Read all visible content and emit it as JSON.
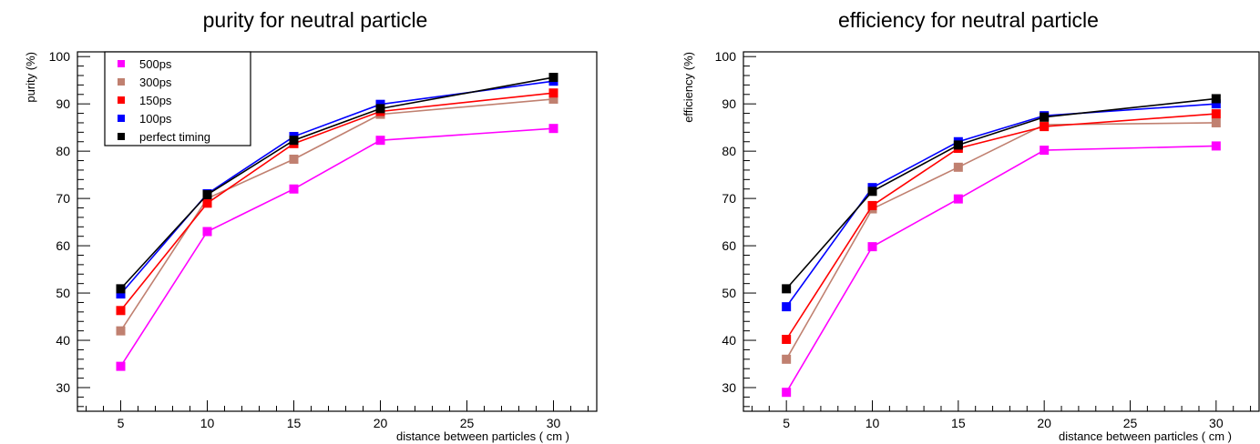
{
  "chart_data": [
    {
      "type": "line",
      "title": "purity for neutral particle",
      "xlabel": "distance between particles ( cm )",
      "ylabel": "purity (%)",
      "xlim": [
        2.5,
        32.5
      ],
      "ylim": [
        25,
        101
      ],
      "x_ticks": [
        5,
        10,
        15,
        20,
        25,
        30
      ],
      "y_ticks": [
        30,
        40,
        50,
        60,
        70,
        80,
        90,
        100
      ],
      "grid": false,
      "legend": "top-left",
      "x": [
        5,
        10,
        15,
        20,
        30
      ],
      "series": [
        {
          "name": "500ps",
          "color": "#ff00ff",
          "values": [
            34.5,
            63,
            72,
            82.3,
            84.8
          ]
        },
        {
          "name": "300ps",
          "color": "#c08070",
          "values": [
            42,
            70,
            78.3,
            87.8,
            91
          ]
        },
        {
          "name": "150ps",
          "color": "#ff0000",
          "values": [
            46.3,
            69,
            81.6,
            88.4,
            92.3
          ]
        },
        {
          "name": "100ps",
          "color": "#0000ff",
          "values": [
            49.8,
            71,
            83.1,
            89.9,
            94.8
          ]
        },
        {
          "name": "perfect timing",
          "color": "#000000",
          "values": [
            50.9,
            70.8,
            82.3,
            89,
            95.6
          ]
        }
      ]
    },
    {
      "type": "line",
      "title": "efficiency for neutral particle",
      "xlabel": "distance between particles ( cm )",
      "ylabel": "efficiency (%)",
      "xlim": [
        2.5,
        32.5
      ],
      "ylim": [
        25,
        101
      ],
      "x_ticks": [
        5,
        10,
        15,
        20,
        25,
        30
      ],
      "y_ticks": [
        30,
        40,
        50,
        60,
        70,
        80,
        90,
        100
      ],
      "grid": false,
      "legend": "none",
      "x": [
        5,
        10,
        15,
        20,
        30
      ],
      "series": [
        {
          "name": "500ps",
          "color": "#ff00ff",
          "values": [
            29,
            59.8,
            69.9,
            80.2,
            81.1
          ]
        },
        {
          "name": "300ps",
          "color": "#c08070",
          "values": [
            36,
            67.8,
            76.6,
            85.6,
            86
          ]
        },
        {
          "name": "150ps",
          "color": "#ff0000",
          "values": [
            40.2,
            68.5,
            80.6,
            85.2,
            87.9
          ]
        },
        {
          "name": "100ps",
          "color": "#0000ff",
          "values": [
            47.1,
            72.3,
            82,
            87.5,
            90
          ]
        },
        {
          "name": "perfect timing",
          "color": "#000000",
          "values": [
            50.9,
            71.5,
            81.3,
            87.2,
            91.1
          ]
        }
      ]
    }
  ]
}
